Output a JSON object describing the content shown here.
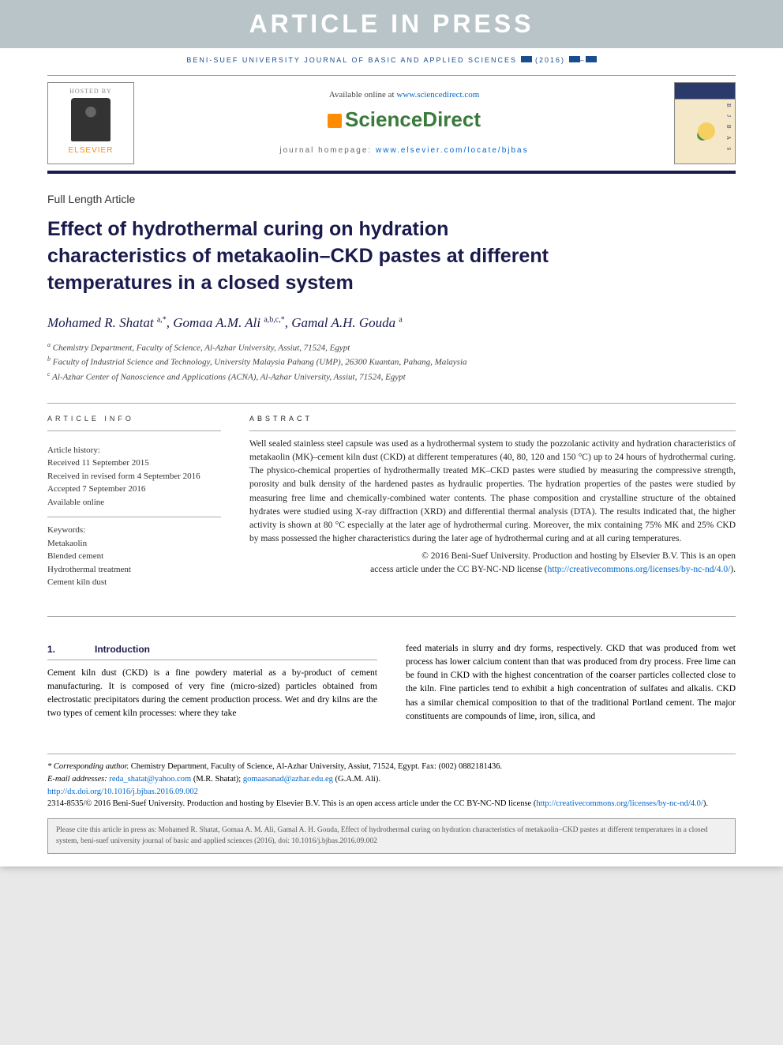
{
  "banner": "ARTICLE IN PRESS",
  "journal_ref_prefix": "BENI-SUEF UNIVERSITY JOURNAL OF BASIC AND APPLIED SCIENCES",
  "journal_ref_year": "(2016)",
  "hosted_by": "HOSTED BY",
  "elsevier": "ELSEVIER",
  "available_text": "Available online at ",
  "available_url": "www.sciencedirect.com",
  "sd_brand": "ScienceDirect",
  "homepage_label": "journal homepage: ",
  "homepage_url": "www.elsevier.com/locate/bjbas",
  "cover_letters": "B J B A S",
  "article_type": "Full Length Article",
  "title": "Effect of hydrothermal curing on hydration characteristics of metakaolin–CKD pastes at different temperatures in a closed system",
  "authors": [
    {
      "name": "Mohamed R. Shatat",
      "sup": "a,*"
    },
    {
      "name": "Gomaa A.M. Ali",
      "sup": "a,b,c,*"
    },
    {
      "name": "Gamal A.H. Gouda",
      "sup": "a"
    }
  ],
  "affiliations": [
    {
      "sup": "a",
      "text": "Chemistry Department, Faculty of Science, Al-Azhar University, Assiut, 71524, Egypt"
    },
    {
      "sup": "b",
      "text": "Faculty of Industrial Science and Technology, University Malaysia Pahang (UMP), 26300 Kuantan, Pahang, Malaysia"
    },
    {
      "sup": "c",
      "text": "Al-Azhar Center of Nanoscience and Applications (ACNA), Al-Azhar University, Assiut, 71524, Egypt"
    }
  ],
  "info_heading": "ARTICLE INFO",
  "history_label": "Article history:",
  "history": [
    "Received 11 September 2015",
    "Received in revised form 4 September 2016",
    "Accepted 7 September 2016",
    "Available online"
  ],
  "keywords_label": "Keywords:",
  "keywords": [
    "Metakaolin",
    "Blended cement",
    "Hydrothermal treatment",
    "Cement kiln dust"
  ],
  "abstract_heading": "ABSTRACT",
  "abstract": "Well sealed stainless steel capsule was used as a hydrothermal system to study the pozzolanic activity and hydration characteristics of metakaolin (MK)–cement kiln dust (CKD) at different temperatures (40, 80, 120 and 150 °C) up to 24 hours of hydrothermal curing. The physico-chemical properties of hydrothermally treated MK–CKD pastes were studied by measuring the compressive strength, porosity and bulk density of the hardened pastes as hydraulic properties. The hydration properties of the pastes were studied by measuring free lime and chemically-combined water contents. The phase composition and crystalline structure of the obtained hydrates were studied using X-ray diffraction (XRD) and differential thermal analysis (DTA). The results indicated that, the higher activity is shown at 80 °C especially at the later age of hydrothermal curing. Moreover, the mix containing 75% MK and 25% CKD by mass possessed the higher characteristics during the later age of hydrothermal curing and at all curing temperatures.",
  "license_line1": "© 2016 Beni-Suef University. Production and hosting by Elsevier B.V. This is an open",
  "license_line2": "access article under the CC BY-NC-ND license (",
  "license_url": "http://creativecommons.org/licenses/by-nc-nd/4.0/",
  "license_close": ").",
  "section1_num": "1.",
  "section1_title": "Introduction",
  "body_col1": "Cement kiln dust (CKD) is a fine powdery material as a by-product of cement manufacturing. It is composed of very fine (micro-sized) particles obtained from electrostatic precipitators during the cement production process. Wet and dry kilns are the two types of cement kiln processes: where they take",
  "body_col2": "feed materials in slurry and dry forms, respectively. CKD that was produced from wet process has lower calcium content than that was produced from dry process. Free lime can be found in CKD with the highest concentration of the coarser particles collected close to the kiln. Fine particles tend to exhibit a high concentration of sulfates and alkalis. CKD has a similar chemical composition to that of the traditional Portland cement. The major constituents are compounds of lime, iron, silica, and",
  "footer": {
    "corr_label": "* Corresponding author.",
    "corr_text": " Chemistry Department, Faculty of Science, Al-Azhar University, Assiut, 71524, Egypt. Fax: (002) 0882181436.",
    "email_label": "E-mail addresses:",
    "email1": "reda_shatat@yahoo.com",
    "email1_name": " (M.R. Shatat); ",
    "email2": "gomaasanad@azhar.edu.eg",
    "email2_name": " (G.A.M. Ali).",
    "doi": "http://dx.doi.org/10.1016/j.bjbas.2016.09.002",
    "issn_line": "2314-8535/© 2016 Beni-Suef University. Production and hosting by Elsevier B.V. This is an open access article under the CC BY-NC-ND license (",
    "issn_url": "http://creativecommons.org/licenses/by-nc-nd/4.0/",
    "issn_close": ")."
  },
  "citation": "Please cite this article in press as: Mohamed R. Shatat, Gomaa A. M. Ali, Gamal A. H. Gouda, Effect of hydrothermal curing on hydration characteristics of metakaolin–CKD pastes at different temperatures in a closed system, beni-suef university journal of basic and applied sciences (2016), doi: 10.1016/j.bjbas.2016.09.002",
  "colors": {
    "banner_bg": "#b8c4c8",
    "brand_blue": "#1a1a4d",
    "link_blue": "#0066cc",
    "elsevier_orange": "#ff8c00",
    "sd_green": "#3a7a3a"
  }
}
